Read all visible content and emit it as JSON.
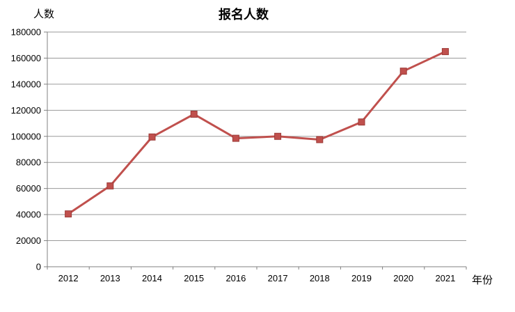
{
  "chart_data": {
    "type": "line",
    "title": "报名人数",
    "ylabel": "人数",
    "xlabel": "年份",
    "categories": [
      "2012",
      "2013",
      "2014",
      "2015",
      "2016",
      "2017",
      "2018",
      "2019",
      "2020",
      "2021"
    ],
    "series": [
      {
        "name": "报名人数",
        "values": [
          40500,
          62000,
          99500,
          117000,
          98500,
          100000,
          97500,
          111000,
          150000,
          165000
        ],
        "color": "#c0504d",
        "marker": "square",
        "marker_border_color": "#9c3a37",
        "line_width": 3
      }
    ],
    "ylim": [
      0,
      180000
    ],
    "ytick_step": 20000,
    "yticks": [
      0,
      20000,
      40000,
      60000,
      80000,
      100000,
      120000,
      140000,
      160000,
      180000
    ],
    "grid": "horizontal",
    "legend": "none",
    "grid_color": "#9a9a9a",
    "axis_color": "#808080",
    "text_color": "#000000",
    "background": "#ffffff"
  }
}
